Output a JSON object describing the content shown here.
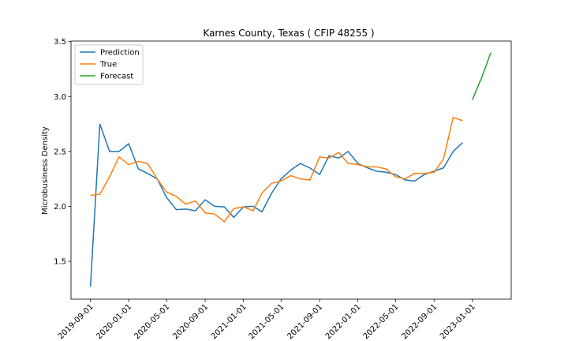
{
  "chart_data": {
    "type": "line",
    "title": "Karnes County, Texas ( CFIP 48255 )",
    "y_label": "Microbusiness Density",
    "legend": "upper left",
    "xlim": [
      "2019-07-01",
      "2023-05-05"
    ],
    "ylim": [
      1.155,
      3.505
    ],
    "xticks": [
      "2019-09-01",
      "2020-01-01",
      "2020-05-01",
      "2020-09-01",
      "2021-01-01",
      "2021-05-01",
      "2021-09-01",
      "2022-01-01",
      "2022-05-01",
      "2022-09-01",
      "2023-01-01"
    ],
    "yticks": [
      1.5,
      {
        "value": 2,
        "label": "2.0"
      },
      2.5,
      {
        "value": 3,
        "label": "3.0"
      },
      3.5
    ],
    "series": [
      {
        "name": "Prediction",
        "color": "#1f77b4",
        "x": [
          "2019-09-01",
          "2019-10-01",
          "2019-11-01",
          "2019-12-01",
          "2020-01-01",
          "2020-02-01",
          "2020-03-01",
          "2020-04-01",
          "2020-05-01",
          "2020-06-01",
          "2020-07-01",
          "2020-08-01",
          "2020-09-01",
          "2020-10-01",
          "2020-11-01",
          "2020-12-01",
          "2021-01-01",
          "2021-02-01",
          "2021-03-01",
          "2021-04-01",
          "2021-05-01",
          "2021-06-01",
          "2021-07-01",
          "2021-08-01",
          "2021-09-01",
          "2021-10-01",
          "2021-11-01",
          "2021-12-01",
          "2022-01-01",
          "2022-02-01",
          "2022-03-01",
          "2022-04-01",
          "2022-05-01",
          "2022-06-01",
          "2022-07-01",
          "2022-08-01",
          "2022-09-01",
          "2022-10-01",
          "2022-11-01",
          "2022-12-01"
        ],
        "values": [
          1.27,
          2.75,
          2.5,
          2.5,
          2.57,
          2.34,
          2.3,
          2.25,
          2.08,
          1.97,
          1.975,
          1.96,
          2.06,
          2.0,
          1.995,
          1.9,
          1.995,
          2.0,
          1.95,
          2.12,
          2.25,
          2.33,
          2.39,
          2.35,
          2.29,
          2.46,
          2.44,
          2.5,
          2.39,
          2.35,
          2.32,
          2.31,
          2.29,
          2.24,
          2.23,
          2.29,
          2.32,
          2.35,
          2.5,
          2.58
        ]
      },
      {
        "name": "True",
        "color": "#ff7f0e",
        "x": [
          "2019-09-01",
          "2019-10-01",
          "2019-11-01",
          "2019-12-01",
          "2020-01-01",
          "2020-02-01",
          "2020-03-01",
          "2020-04-01",
          "2020-05-01",
          "2020-06-01",
          "2020-07-01",
          "2020-08-01",
          "2020-09-01",
          "2020-10-01",
          "2020-11-01",
          "2020-12-01",
          "2021-01-01",
          "2021-02-01",
          "2021-03-01",
          "2021-04-01",
          "2021-05-01",
          "2021-06-01",
          "2021-07-01",
          "2021-08-01",
          "2021-09-01",
          "2021-10-01",
          "2021-11-01",
          "2021-12-01",
          "2022-01-01",
          "2022-02-01",
          "2022-03-01",
          "2022-04-01",
          "2022-05-01",
          "2022-06-01",
          "2022-07-01",
          "2022-08-01",
          "2022-09-01",
          "2022-10-01",
          "2022-11-01",
          "2022-12-01"
        ],
        "values": [
          2.1,
          2.11,
          2.27,
          2.45,
          2.38,
          2.41,
          2.39,
          2.25,
          2.13,
          2.09,
          2.02,
          2.05,
          1.94,
          1.93,
          1.86,
          1.98,
          1.995,
          1.96,
          2.12,
          2.21,
          2.23,
          2.28,
          2.25,
          2.24,
          2.45,
          2.44,
          2.49,
          2.39,
          2.38,
          2.36,
          2.36,
          2.34,
          2.27,
          2.25,
          2.3,
          2.3,
          2.31,
          2.43,
          2.81,
          2.78
        ]
      },
      {
        "name": "Forecast",
        "color": "#2ca02c",
        "x": [
          "2023-01-01",
          "2023-02-01",
          "2023-03-01"
        ],
        "values": [
          2.97,
          3.18,
          3.4
        ]
      }
    ]
  }
}
